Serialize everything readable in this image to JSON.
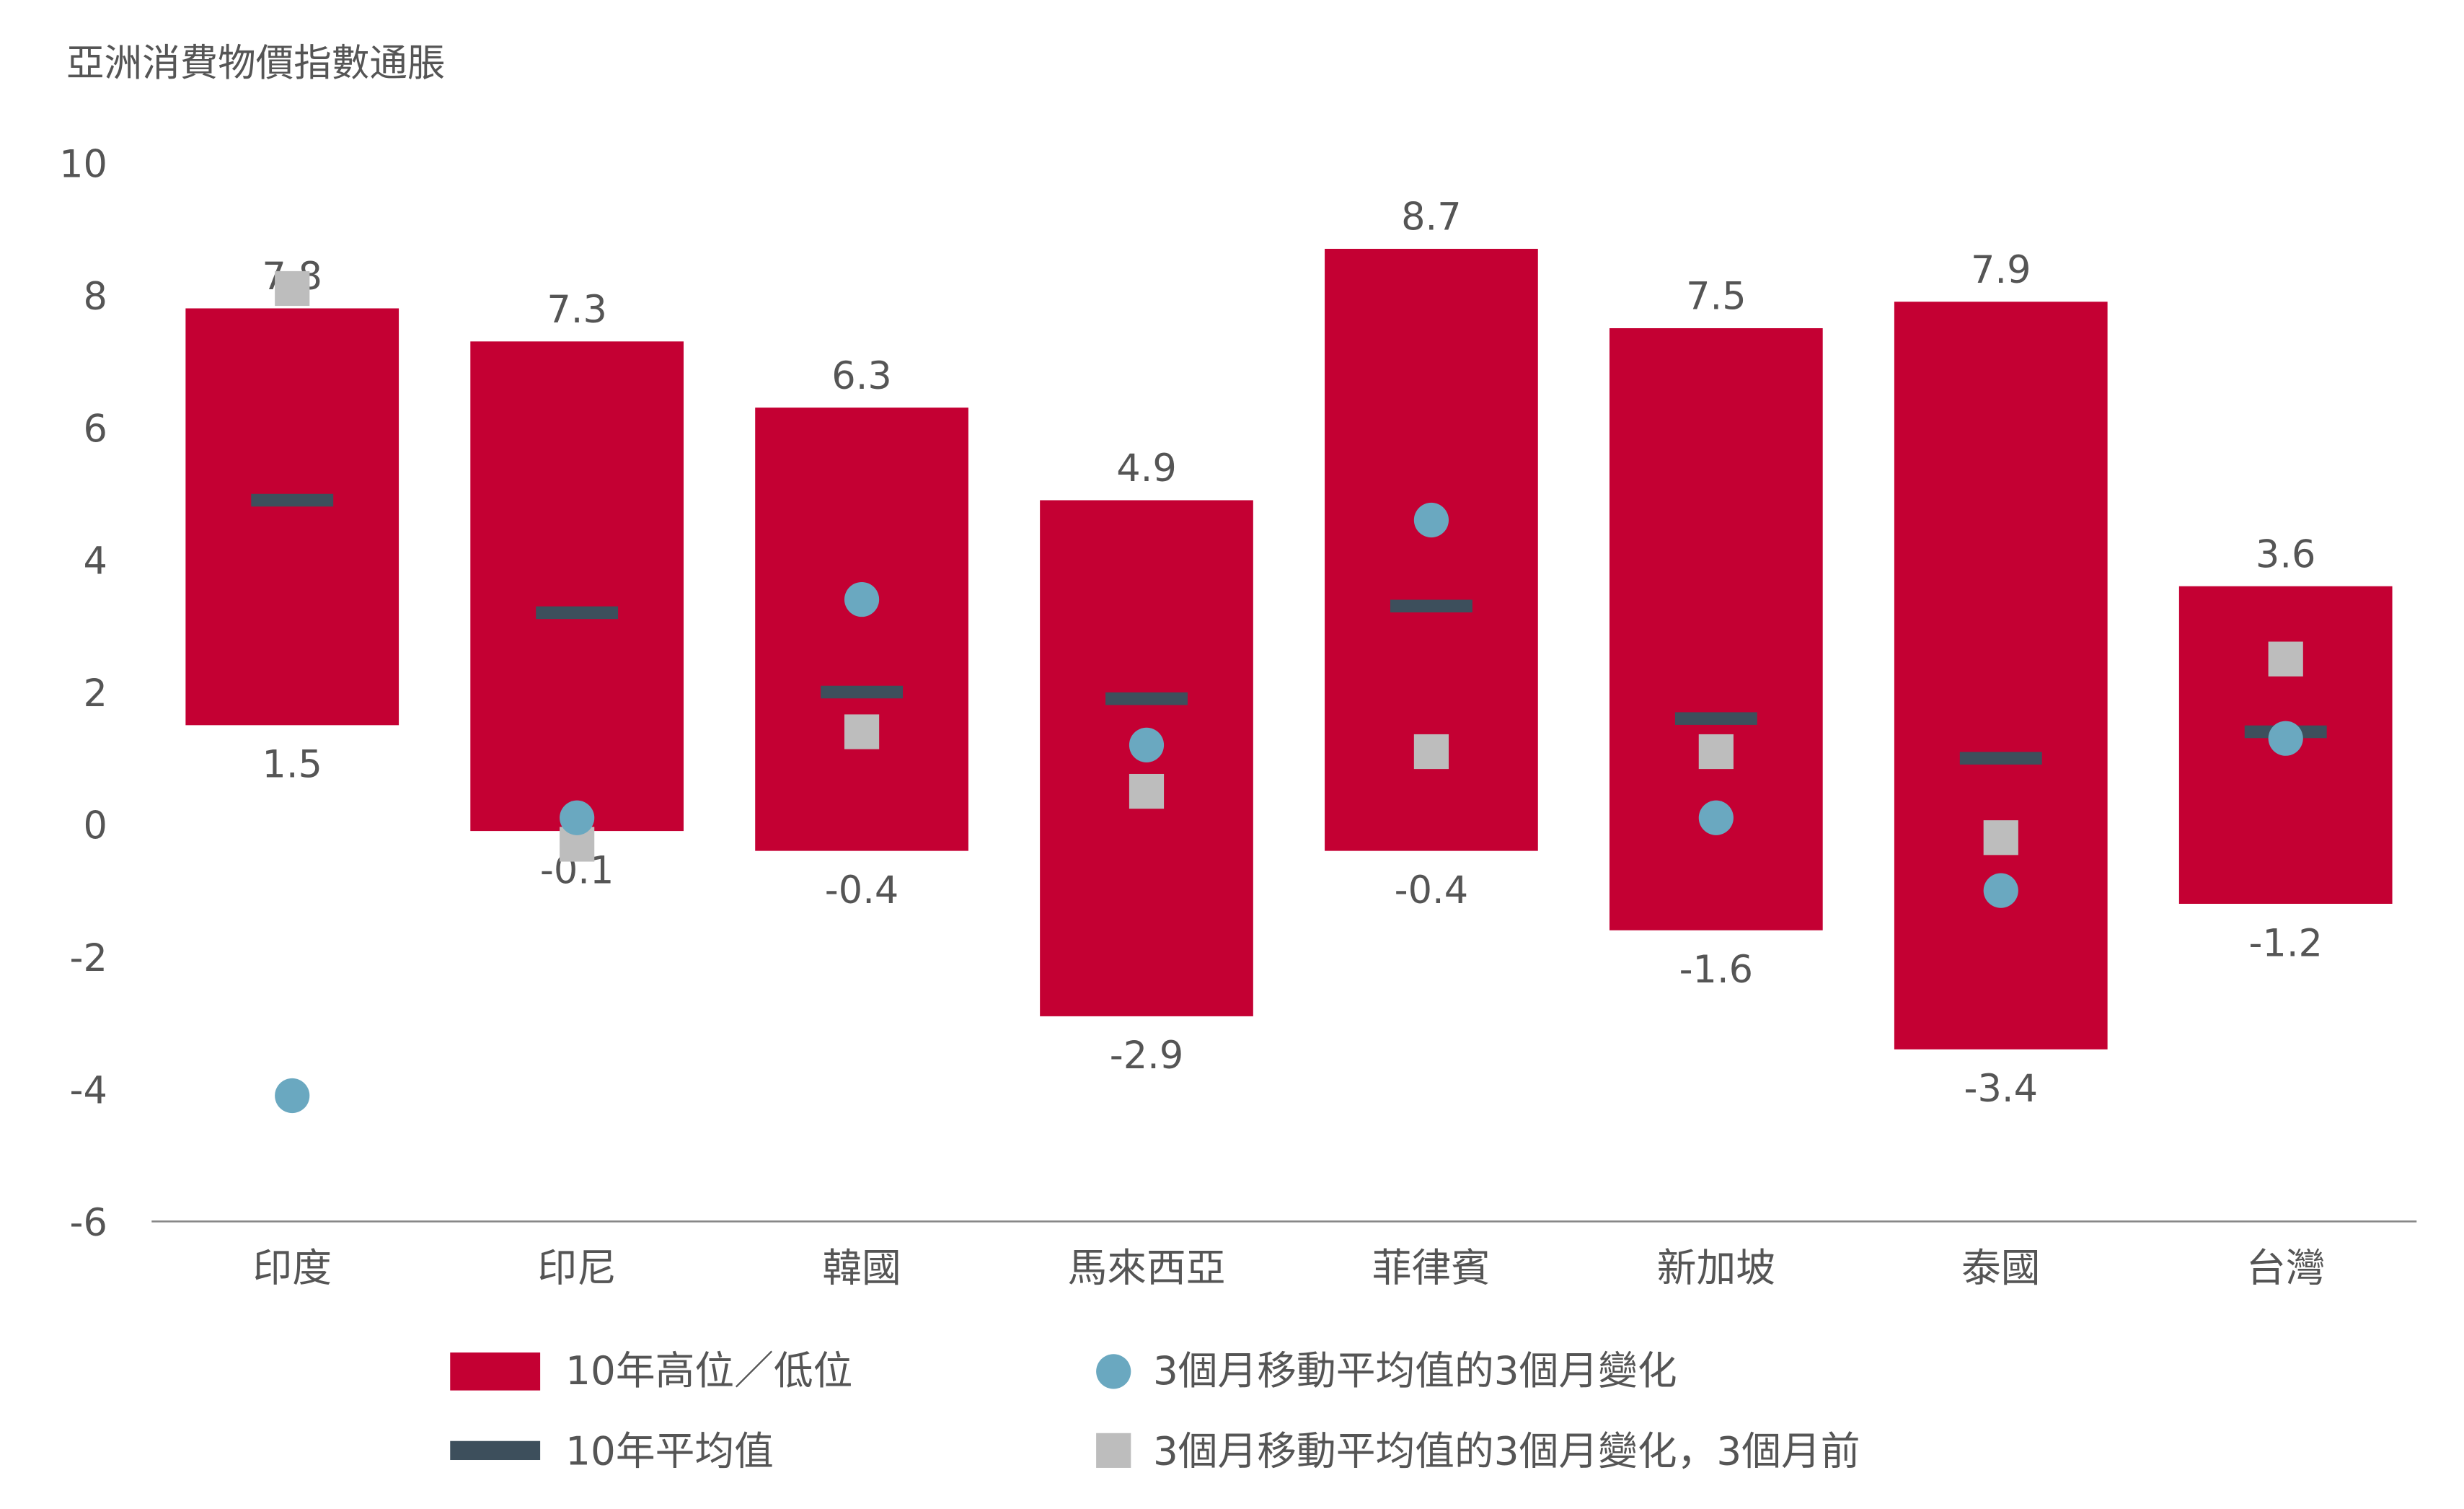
{
  "chart_data": {
    "type": "bar",
    "title": "亞洲消費物價指數通脹",
    "xlabel": "",
    "ylabel": "",
    "ylim": [
      -6,
      10
    ],
    "yticks": [
      "10",
      "8",
      "6",
      "4",
      "2",
      "0",
      "-2",
      "-4",
      "-6"
    ],
    "ytick_values": [
      10,
      8,
      6,
      4,
      2,
      0,
      -2,
      -4,
      -6
    ],
    "grid": false,
    "categories": [
      "印度",
      "印尼",
      "韓國",
      "馬來西亞",
      "菲律賓",
      "新加坡",
      "泰國",
      "台灣"
    ],
    "series": [
      {
        "name": "10年高位／低位",
        "type": "range-bar",
        "color": "#C40033",
        "high": [
          7.8,
          7.3,
          6.3,
          4.9,
          8.7,
          7.5,
          7.9,
          3.6
        ],
        "low": [
          1.5,
          -0.1,
          -0.4,
          -2.9,
          -0.4,
          -1.6,
          -3.4,
          -1.2
        ],
        "high_labels": [
          "7.8",
          "7.3",
          "6.3",
          "4.9",
          "8.7",
          "7.5",
          "7.9",
          "3.6"
        ],
        "low_labels": [
          "1.5",
          "-0.1",
          "-0.4",
          "-2.9",
          "-0.4",
          "-1.6",
          "-3.4",
          "-1.2"
        ]
      },
      {
        "name": "10年平均值",
        "type": "marker-line",
        "color": "#3D4F5C",
        "values": [
          4.9,
          3.2,
          2.0,
          1.9,
          3.3,
          1.6,
          1.0,
          1.4
        ]
      },
      {
        "name": "3個月移動平均值的3個月變化",
        "type": "marker-circle",
        "color": "#6AA8C0",
        "values": [
          -4.1,
          0.1,
          3.4,
          1.2,
          4.6,
          0.1,
          -1.0,
          1.3
        ]
      },
      {
        "name": "3個月移動平均值的3個月變化，3個月前",
        "type": "marker-square",
        "color": "#BDBDBD",
        "values": [
          8.1,
          -0.3,
          1.4,
          0.5,
          1.1,
          1.1,
          -0.2,
          2.5
        ]
      }
    ],
    "legend_position": "bottom"
  }
}
